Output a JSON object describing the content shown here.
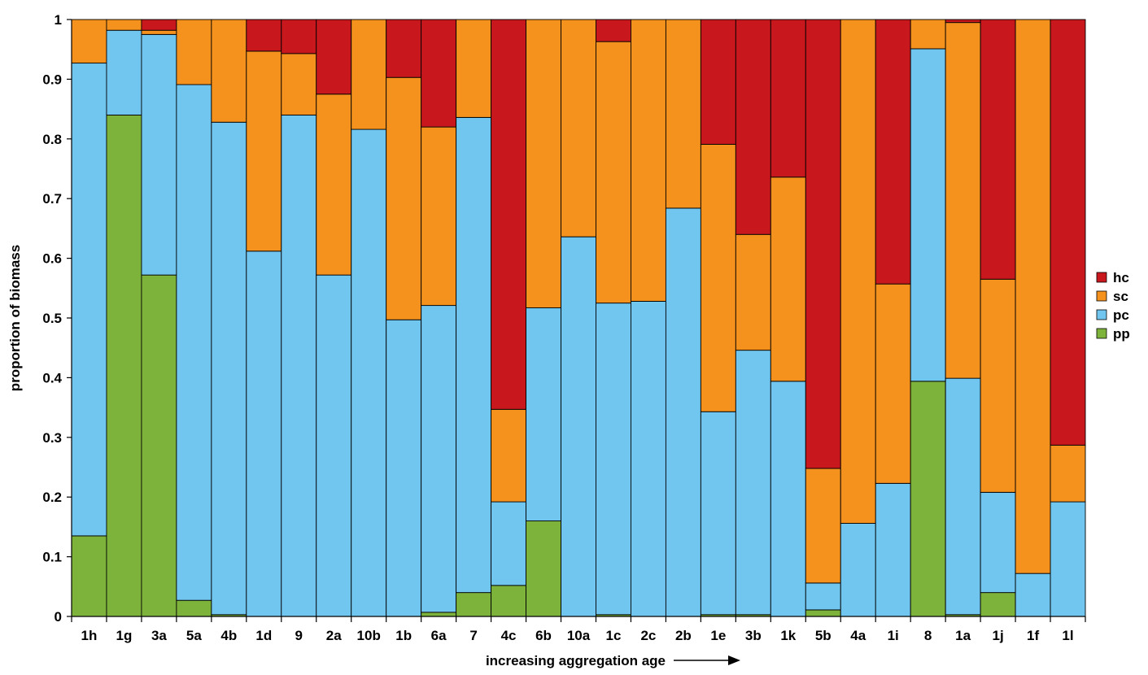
{
  "chart_data": {
    "type": "bar",
    "stacked": true,
    "title": "",
    "xlabel": "increasing aggregation age",
    "ylabel": "proportion of biomass",
    "ylim": [
      0,
      1
    ],
    "yticks": [
      "0",
      "0.1",
      "0.2",
      "0.3",
      "0.4",
      "0.5",
      "0.6",
      "0.7",
      "0.8",
      "0.9",
      "1"
    ],
    "grid": false,
    "legend_position": "right",
    "categories": [
      "1h",
      "1g",
      "3a",
      "5a",
      "4b",
      "1d",
      "9",
      "2a",
      "10b",
      "1b",
      "6a",
      "7",
      "4c",
      "6b",
      "10a",
      "1c",
      "2c",
      "2b",
      "1e",
      "3b",
      "1k",
      "5b",
      "4a",
      "1i",
      "8",
      "1a",
      "1j",
      "1f",
      "1l"
    ],
    "series": [
      {
        "name": "pp",
        "color": "#7db33b",
        "values": [
          0.135,
          0.84,
          0.572,
          0.027,
          0.003,
          0,
          0,
          0,
          0,
          0,
          0.007,
          0.04,
          0.052,
          0.16,
          0,
          0.003,
          0,
          0,
          0.003,
          0.003,
          0,
          0.011,
          0,
          0,
          0.394,
          0.003,
          0.04,
          0,
          0
        ]
      },
      {
        "name": "pc",
        "color": "#71c6f0",
        "values": [
          0.792,
          0.142,
          0.403,
          0.864,
          0.825,
          0.612,
          0.84,
          0.572,
          0.816,
          0.497,
          0.514,
          0.796,
          0.14,
          0.357,
          0.636,
          0.522,
          0.528,
          0.684,
          0.34,
          0.443,
          0.394,
          0.045,
          0.156,
          0.223,
          0.557,
          0.396,
          0.168,
          0.072,
          0.192
        ]
      },
      {
        "name": "sc",
        "color": "#f5921e",
        "values": [
          0.073,
          0.018,
          0.007,
          0.109,
          0.172,
          0.335,
          0.103,
          0.303,
          0.184,
          0.406,
          0.299,
          0.164,
          0.155,
          0.483,
          0.364,
          0.438,
          0.472,
          0.316,
          0.448,
          0.194,
          0.342,
          0.192,
          0.844,
          0.334,
          0.049,
          0.596,
          0.357,
          0.928,
          0.095
        ]
      },
      {
        "name": "hc",
        "color": "#c8181e",
        "values": [
          0,
          0,
          0.018,
          0,
          0,
          0.053,
          0.057,
          0.125,
          0,
          0.097,
          0.18,
          0,
          0.653,
          0,
          0,
          0.037,
          0,
          0,
          0.209,
          0.36,
          0.264,
          0.752,
          0,
          0.443,
          0,
          0.005,
          0.435,
          0,
          0.713
        ]
      }
    ],
    "legend_order": [
      "hc",
      "sc",
      "pc",
      "pp"
    ]
  }
}
